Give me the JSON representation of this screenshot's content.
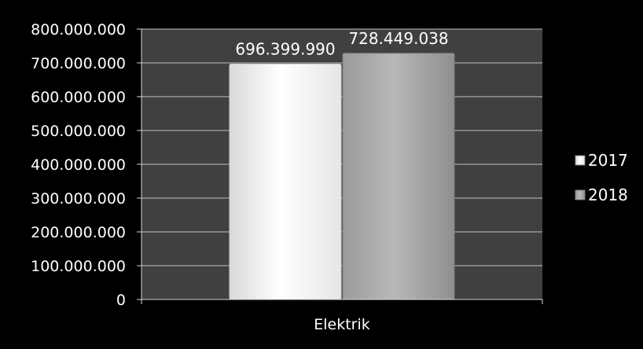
{
  "chart_data": {
    "type": "bar",
    "categories": [
      "Elektrik"
    ],
    "series": [
      {
        "name": "2017",
        "values": [
          696399990
        ],
        "label": "696.399.990",
        "color": "#f2f2f2"
      },
      {
        "name": "2018",
        "values": [
          728449038
        ],
        "label": "728.449.038",
        "color": "#a6a6a6"
      }
    ],
    "ylim": [
      0,
      800000000
    ],
    "yticks": [
      0,
      100000000,
      200000000,
      300000000,
      400000000,
      500000000,
      600000000,
      700000000,
      800000000
    ],
    "ytick_labels": [
      "0",
      "100.000.000",
      "200.000.000",
      "300.000.000",
      "400.000.000",
      "500.000.000",
      "600.000.000",
      "700.000.000",
      "800.000.000"
    ],
    "xlabel": "",
    "ylabel": "",
    "title": "",
    "grid": true,
    "legend_position": "right",
    "plot_background": "#404040",
    "figure_background": "#000000"
  }
}
